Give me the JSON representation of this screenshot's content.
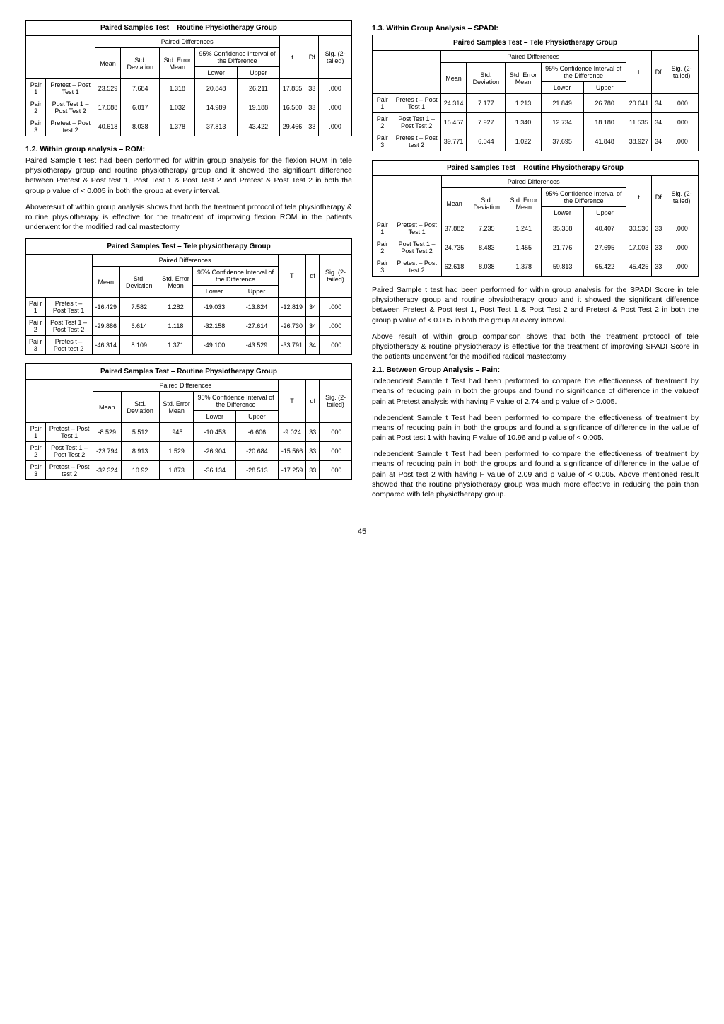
{
  "table1": {
    "title": "Paired Samples Test – Routine Physiotherapy Group",
    "pdHeader": "Paired Differences",
    "cols": {
      "mean": "Mean",
      "sd": "Std. Deviation",
      "se": "Std. Error Mean",
      "ci": "95% Confidence Interval of the Difference",
      "lower": "Lower",
      "upper": "Upper",
      "t": "t",
      "df": "Df",
      "sig": "Sig. (2-tailed)"
    },
    "rows": [
      [
        "Pair 1",
        "Pretest – Post Test 1",
        "23.529",
        "7.684",
        "1.318",
        "20.848",
        "26.211",
        "17.855",
        "33",
        ".000"
      ],
      [
        "Pair 2",
        "Post Test 1 – Post Test 2",
        "17.088",
        "6.017",
        "1.032",
        "14.989",
        "19.188",
        "16.560",
        "33",
        ".000"
      ],
      [
        "Pair 3",
        "Pretest – Post test 2",
        "40.618",
        "8.038",
        "1.378",
        "37.813",
        "43.422",
        "29.466",
        "33",
        ".000"
      ]
    ]
  },
  "sect12": {
    "head": "1.2. Within group analysis – ROM:",
    "p1": "Paired Sample t test had been performed for within group analysis for the flexion ROM in tele physiotherapy group and routine physiotherapy group and it showed the significant difference between Pretest & Post test 1, Post Test 1 & Post Test 2 and Pretest & Post Test 2 in both the group p value of < 0.005 in both the group at every interval.",
    "p2": "Aboveresult of within group analysis shows that both the treatment protocol of tele physiotherapy & routine physiotherapy is effective for the treatment of improving flexion ROM in the patients underwent for the modified radical mastectomy"
  },
  "table2": {
    "title": "Paired Samples Test – Tele physiotherapy Group",
    "pdHeader": "Paired Differences",
    "cols": {
      "mean": "Mean",
      "sd": "Std. Deviation",
      "se": "Std. Error Mean",
      "ci": "95% Confidence Interval of the Difference",
      "lower": "Lower",
      "upper": "Upper",
      "t": "T",
      "df": "df",
      "sig": "Sig. (2-tailed)"
    },
    "rows": [
      [
        "Pai r 1",
        "Pretes t – Post Test 1",
        "-16.429",
        "7.582",
        "1.282",
        "-19.033",
        "-13.824",
        "-12.819",
        "34",
        ".000"
      ],
      [
        "Pai r 2",
        "Post Test 1 – Post Test 2",
        "-29.886",
        "6.614",
        "1.118",
        "-32.158",
        "-27.614",
        "-26.730",
        "34",
        ".000"
      ],
      [
        "Pai r 3",
        "Pretes t – Post test 2",
        "-46.314",
        "8.109",
        "1.371",
        "-49.100",
        "-43.529",
        "-33.791",
        "34",
        ".000"
      ]
    ]
  },
  "table3": {
    "title": "Paired Samples Test – Routine Physiotherapy Group",
    "pdHeader": "Paired Differences",
    "cols": {
      "mean": "Mean",
      "sd": "Std. Deviation",
      "se": "Std. Error Mean",
      "ci": "95% Confidence Interval of the Difference",
      "lower": "Lower",
      "upper": "Upper",
      "t": "T",
      "df": "df",
      "sig": "Sig. (2-tailed)"
    },
    "rows": [
      [
        "Pair 1",
        "Pretest – Post Test 1",
        "-8.529",
        "5.512",
        ".945",
        "-10.453",
        "-6.606",
        "-9.024",
        "33",
        ".000"
      ],
      [
        "Pair 2",
        "Post Test 1 – Post Test 2",
        "-23.794",
        "8.913",
        "1.529",
        "-26.904",
        "-20.684",
        "-15.566",
        "33",
        ".000"
      ],
      [
        "Pair 3",
        "Pretest – Post test 2",
        "-32.324",
        "10.92",
        "1.873",
        "-36.134",
        "-28.513",
        "-17.259",
        "33",
        ".000"
      ]
    ]
  },
  "sect13": {
    "head": "1.3. Within Group Analysis – SPADI:"
  },
  "table4": {
    "title": "Paired Samples Test – Tele Physiotherapy Group",
    "pdHeader": "Paired Differences",
    "cols": {
      "mean": "Mean",
      "sd": "Std. Deviation",
      "se": "Std. Error Mean",
      "ci": "95% Confidence Interval of the Difference",
      "lower": "Lower",
      "upper": "Upper",
      "t": "t",
      "df": "Df",
      "sig": "Sig. (2-tailed)"
    },
    "rows": [
      [
        "Pair 1",
        "Pretes t – Post Test 1",
        "24.314",
        "7.177",
        "1.213",
        "21.849",
        "26.780",
        "20.041",
        "34",
        ".000"
      ],
      [
        "Pair 2",
        "Post Test 1 – Post Test 2",
        "15.457",
        "7.927",
        "1.340",
        "12.734",
        "18.180",
        "11.535",
        "34",
        ".000"
      ],
      [
        "Pair 3",
        "Pretes t – Post test 2",
        "39.771",
        "6.044",
        "1.022",
        "37.695",
        "41.848",
        "38.927",
        "34",
        ".000"
      ]
    ]
  },
  "table5": {
    "title": "Paired Samples Test – Routine Physiotherapy Group",
    "pdHeader": "Paired Differences",
    "cols": {
      "mean": "Mean",
      "sd": "Std. Deviation",
      "se": "Std. Error Mean",
      "ci": "95% Confidence Interval of the Difference",
      "lower": "Lower",
      "upper": "Upper",
      "t": "t",
      "df": "Df",
      "sig": "Sig. (2-tailed)"
    },
    "rows": [
      [
        "Pair 1",
        "Pretest – Post Test 1",
        "37.882",
        "7.235",
        "1.241",
        "35.358",
        "40.407",
        "30.530",
        "33",
        ".000"
      ],
      [
        "Pair 2",
        "Post Test 1 – Post Test 2",
        "24.735",
        "8.483",
        "1.455",
        "21.776",
        "27.695",
        "17.003",
        "33",
        ".000"
      ],
      [
        "Pair 3",
        "Pretest – Post test 2",
        "62.618",
        "8.038",
        "1.378",
        "59.813",
        "65.422",
        "45.425",
        "33",
        ".000"
      ]
    ]
  },
  "paraA": "Paired Sample t test had been performed for within group analysis for the SPADI Score in tele physiotherapy group and routine physiotherapy group and it showed the significant difference between Pretest & Post test 1, Post Test 1 & Post Test 2 and Pretest & Post Test 2 in both the group p value of < 0.005 in both the group at every interval.",
  "paraB": "Above result of within group comparison shows that both the treatment protocol of tele physiotherapy & routine physiotherapy is effective for the treatment of improving SPADI Score in the patients underwent for the modified radical mastectomy",
  "sect21": {
    "head": "2.1. Between Group Analysis – Pain:",
    "p1": "Independent Sample t Test had been performed to compare the effectiveness of treatment by means of reducing pain in both the groups and found no significance of difference in the valueof pain at Pretest analysis with having F value of 2.74 and p value of > 0.005.",
    "p2": "Independent Sample t Test had been performed to compare the effectiveness of treatment by means of reducing pain in both the groups and found a significance of difference in the value of pain at Post test 1 with having F value of 10.96 and p value of < 0.005.",
    "p3": "Independent Sample t Test had been performed to compare the effectiveness of treatment by means of reducing pain in both the groups and found a significance of difference in the value of pain at Post test 2 with having F value of 2.09 and p value of < 0.005. Above mentioned result showed that the routine physiotherapy group was much more effective in reducing the pain than compared with tele physiotherapy group."
  },
  "pageNum": "45"
}
